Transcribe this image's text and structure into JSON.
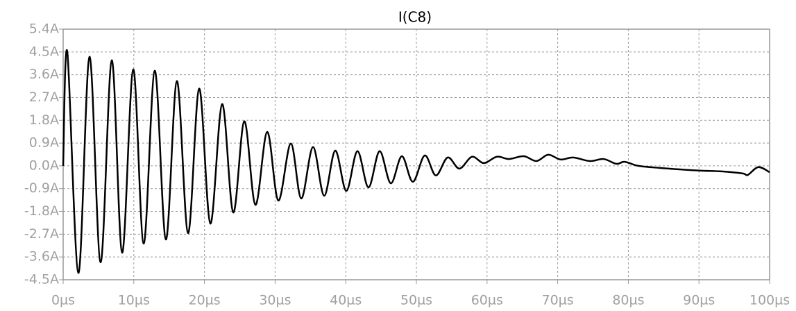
{
  "chart_data": {
    "type": "line",
    "title": "I(C8)",
    "x": [
      0,
      0.59,
      2.16,
      3.73,
      5.3,
      6.88,
      8.35,
      9.92,
      11.4,
      12.97,
      14.54,
      16.1,
      17.68,
      19.25,
      20.83,
      22.5,
      24.07,
      25.64,
      27.21,
      28.88,
      30.45,
      32.22,
      33.7,
      35.36,
      36.94,
      38.51,
      40.08,
      41.65,
      43.22,
      44.79,
      46.37,
      47.94,
      49.5,
      51.18,
      52.75,
      54.42,
      56.09,
      57.86,
      59.53,
      61.4,
      63.1,
      65.2,
      67,
      68.66,
      70.4,
      72.2,
      74.56,
      76.5,
      78.3,
      79.5,
      81.4,
      84.4,
      87.3,
      90.3,
      93.2,
      96.2,
      96.9,
      98.4,
      100
    ],
    "series": [
      {
        "name": "I(C8)",
        "color": "#000000",
        "values": [
          0,
          4.5,
          -4.23,
          4.31,
          -3.81,
          4.17,
          -3.43,
          3.81,
          -3.07,
          3.76,
          -2.91,
          3.35,
          -2.66,
          3.05,
          -2.28,
          2.44,
          -1.84,
          1.76,
          -1.54,
          1.34,
          -1.37,
          0.88,
          -1.29,
          0.74,
          -1.18,
          0.6,
          -0.99,
          0.58,
          -0.85,
          0.58,
          -0.69,
          0.38,
          -0.63,
          0.41,
          -0.38,
          0.33,
          -0.11,
          0.36,
          0.11,
          0.36,
          0.27,
          0.38,
          0.19,
          0.44,
          0.25,
          0.33,
          0.19,
          0.27,
          0.08,
          0.16,
          0,
          -0.08,
          -0.14,
          -0.19,
          -0.22,
          -0.3,
          -0.36,
          -0.05,
          -0.25
        ]
      }
    ],
    "xlim": [
      0,
      100
    ],
    "xticks": [
      {
        "value": 0,
        "label": "0µs"
      },
      {
        "value": 10,
        "label": "10µs"
      },
      {
        "value": 20,
        "label": "20µs"
      },
      {
        "value": 30,
        "label": "30µs"
      },
      {
        "value": 40,
        "label": "40µs"
      },
      {
        "value": 50,
        "label": "50µs"
      },
      {
        "value": 60,
        "label": "60µs"
      },
      {
        "value": 70,
        "label": "70µs"
      },
      {
        "value": 80,
        "label": "80µs"
      },
      {
        "value": 90,
        "label": "90µs"
      },
      {
        "value": 100,
        "label": "100µs"
      }
    ],
    "ylim": [
      -4.5,
      5.4
    ],
    "yticks": [
      {
        "value": -4.5,
        "label": "-4.5A"
      },
      {
        "value": -3.6,
        "label": "-3.6A"
      },
      {
        "value": -2.7,
        "label": "-2.7A"
      },
      {
        "value": -1.8,
        "label": "-1.8A"
      },
      {
        "value": -0.9,
        "label": "-0.9A"
      },
      {
        "value": 0,
        "label": "0.0A"
      },
      {
        "value": 0.9,
        "label": "0.9A"
      },
      {
        "value": 1.8,
        "label": "1.8A"
      },
      {
        "value": 2.7,
        "label": "2.7A"
      },
      {
        "value": 3.6,
        "label": "3.6A"
      },
      {
        "value": 4.5,
        "label": "4.5A"
      },
      {
        "value": 5.4,
        "label": "5.4A"
      }
    ],
    "grid": true
  }
}
